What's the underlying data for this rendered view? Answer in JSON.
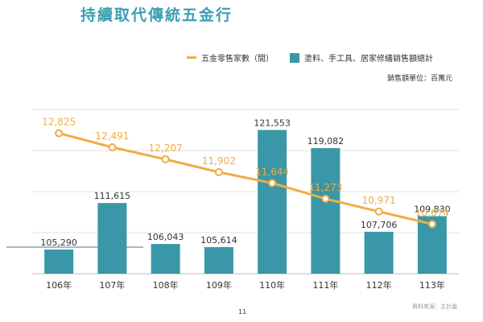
{
  "title": "持續取代傳統五金行",
  "legend": {
    "line_label": "五金零售家數（間）",
    "bar_label": "塗料、手工具、居家修繕銷售額總計"
  },
  "unit_note": "銷售額單位：百萬元",
  "source_note": "資料來源：主計處",
  "page_number": "11",
  "colors": {
    "bar": "#3a97a7",
    "line": "#f0ad45",
    "title": "#3c9fb1"
  },
  "chart_data": {
    "type": "bar",
    "categories": [
      "106年",
      "107年",
      "108年",
      "109年",
      "110年",
      "111年",
      "112年",
      "113年"
    ],
    "series": [
      {
        "name": "塗料、手工具、居家修繕銷售額總計",
        "type": "bar",
        "values": [
          105290,
          111615,
          106043,
          105614,
          121553,
          119082,
          107706,
          109830
        ],
        "labels": [
          "105,290",
          "111,615",
          "106,043",
          "105,614",
          "121,553",
          "119,082",
          "107,706",
          "109,830"
        ]
      },
      {
        "name": "五金零售家數（間）",
        "type": "line",
        "values": [
          12825,
          12491,
          12207,
          11902,
          11644,
          11273,
          10971,
          10674
        ],
        "labels": [
          "12,825",
          "12,491",
          "12,207",
          "11,902",
          "11,644",
          "11,273",
          "10,971",
          "10,674"
        ]
      }
    ],
    "bar_axis_range": [
      102000,
      125000
    ],
    "line_axis_range": [
      9500,
      13500
    ],
    "grid": true,
    "legend_position": "top-right"
  }
}
